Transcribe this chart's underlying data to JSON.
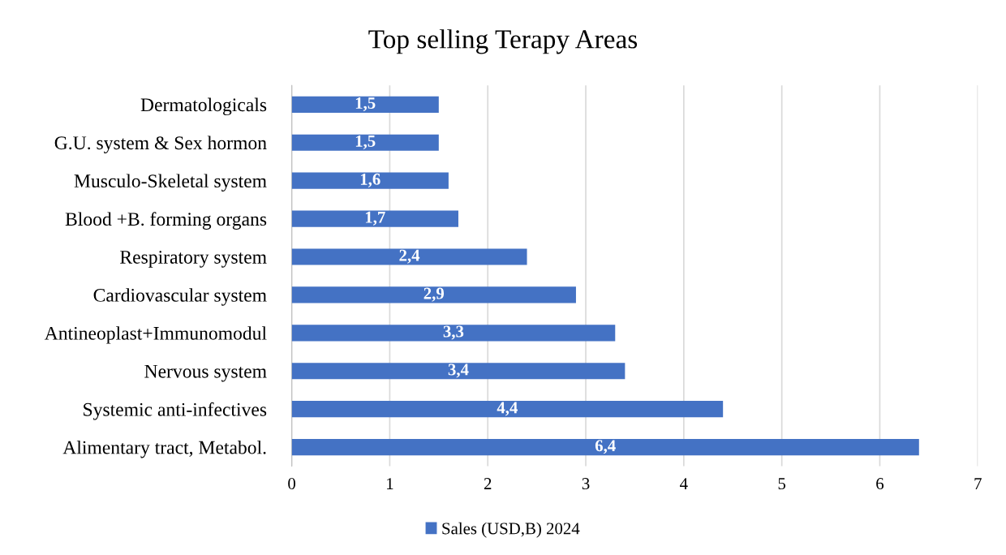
{
  "chart_data": {
    "type": "bar",
    "orientation": "horizontal",
    "title": "Top selling Terapy Areas",
    "categories": [
      "Dermatologicals",
      "G.U. system & Sex hormon",
      "Musculo-Skeletal system",
      "Blood +B. forming organs",
      "Respiratory system",
      "Cardiovascular system",
      "Antineoplast+Immunomodul",
      "Nervous system",
      "Systemic anti-infectives",
      "Alimentary tract, Metabol."
    ],
    "series": [
      {
        "name": "Sales (USD,B) 2024",
        "color": "#4472c4",
        "values": [
          1.5,
          1.5,
          1.6,
          1.7,
          2.4,
          2.9,
          3.3,
          3.4,
          4.4,
          6.4
        ],
        "value_labels": [
          "1,5",
          "1,5",
          "1,6",
          "1,7",
          "2,4",
          "2,9",
          "3,3",
          "3,4",
          "4,4",
          "6,4"
        ]
      }
    ],
    "xlim": [
      0,
      7
    ],
    "xticks": [
      0,
      1,
      2,
      3,
      4,
      5,
      6,
      7
    ],
    "grid": "x",
    "legend": "bottom"
  }
}
